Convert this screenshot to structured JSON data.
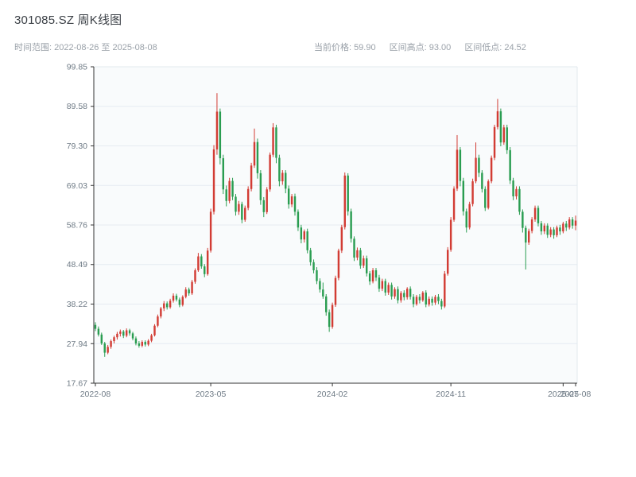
{
  "header": {
    "title": "301085.SZ 周K线图",
    "time_range": "时间范围: 2022-08-26 至 2025-08-08",
    "stats": [
      {
        "label": "当前价格:",
        "value": "59.90"
      },
      {
        "label": "区间高点:",
        "value": "93.00"
      },
      {
        "label": "区间低点:",
        "value": "24.52"
      }
    ]
  },
  "chart_data": {
    "type": "candlestick",
    "title": "301085.SZ 周K线图",
    "period": "weekly",
    "date_range": [
      "2022-08-26",
      "2025-08-08"
    ],
    "current_price": 59.9,
    "range_high": 93.0,
    "range_low": 24.52,
    "ylim": [
      17.67,
      99.85
    ],
    "y_ticks": [
      "17.67",
      "27.94",
      "38.22",
      "48.49",
      "58.76",
      "69.03",
      "79.30",
      "89.58",
      "99.85"
    ],
    "x_ticks": [
      {
        "label": "2022-08",
        "index": 0
      },
      {
        "label": "2023-05",
        "index": 37
      },
      {
        "label": "2024-02",
        "index": 76
      },
      {
        "label": "2024-11",
        "index": 114
      },
      {
        "label": "2025-07",
        "index": 150
      },
      {
        "label": "2025-08",
        "index": 154
      }
    ],
    "candle_format": [
      "open",
      "high",
      "low",
      "close"
    ],
    "colors": {
      "up": "#d23c34",
      "down": "#2a9d51",
      "grid": "#e6ebf1",
      "plot_bg": "#f9fbfc",
      "axis": "#333333",
      "frame": "#e2e8ee",
      "tick_label": "#6f7b86"
    },
    "candles": [
      [
        32.8,
        33.5,
        31.2,
        31.8
      ],
      [
        31.8,
        32.4,
        29.8,
        30.3
      ],
      [
        30.3,
        30.8,
        27.6,
        28.0
      ],
      [
        28.0,
        28.4,
        24.52,
        25.6
      ],
      [
        25.6,
        27.6,
        25.2,
        27.1
      ],
      [
        27.1,
        29.0,
        26.6,
        28.6
      ],
      [
        28.6,
        30.0,
        28.0,
        29.6
      ],
      [
        29.6,
        31.0,
        29.0,
        30.5
      ],
      [
        30.5,
        31.6,
        29.8,
        31.1
      ],
      [
        31.1,
        31.5,
        29.4,
        30.0
      ],
      [
        30.0,
        31.9,
        29.6,
        31.4
      ],
      [
        31.4,
        31.8,
        30.0,
        30.6
      ],
      [
        30.6,
        31.0,
        28.8,
        29.3
      ],
      [
        29.3,
        29.8,
        27.5,
        28.0
      ],
      [
        28.0,
        28.6,
        26.9,
        27.4
      ],
      [
        27.4,
        28.8,
        27.0,
        28.4
      ],
      [
        28.4,
        28.8,
        27.2,
        27.7
      ],
      [
        27.7,
        29.1,
        27.3,
        28.7
      ],
      [
        28.7,
        30.5,
        28.3,
        30.1
      ],
      [
        30.1,
        33.0,
        29.8,
        32.6
      ],
      [
        32.6,
        35.5,
        32.2,
        35.0
      ],
      [
        35.0,
        37.5,
        34.5,
        37.1
      ],
      [
        37.1,
        39.0,
        36.4,
        38.4
      ],
      [
        38.4,
        38.9,
        36.8,
        37.4
      ],
      [
        37.4,
        39.6,
        37.0,
        39.1
      ],
      [
        39.1,
        41.0,
        38.6,
        40.4
      ],
      [
        40.4,
        40.9,
        38.9,
        39.4
      ],
      [
        39.4,
        39.9,
        37.4,
        38.0
      ],
      [
        38.0,
        40.5,
        37.6,
        40.1
      ],
      [
        40.1,
        42.6,
        39.7,
        42.0
      ],
      [
        42.0,
        42.5,
        40.4,
        41.0
      ],
      [
        41.0,
        44.5,
        40.6,
        44.0
      ],
      [
        44.0,
        47.5,
        43.5,
        47.0
      ],
      [
        47.0,
        51.5,
        46.6,
        50.6
      ],
      [
        50.6,
        51.2,
        47.4,
        48.0
      ],
      [
        48.0,
        48.6,
        45.2,
        46.0
      ],
      [
        46.0,
        52.8,
        45.6,
        52.1
      ],
      [
        52.1,
        63.0,
        51.6,
        62.2
      ],
      [
        62.2,
        79.5,
        61.5,
        78.4
      ],
      [
        78.4,
        93.0,
        77.0,
        88.2
      ],
      [
        88.2,
        89.0,
        74.5,
        76.1
      ],
      [
        76.1,
        77.0,
        66.8,
        68.0
      ],
      [
        68.0,
        69.0,
        63.6,
        65.0
      ],
      [
        65.0,
        71.0,
        64.4,
        70.2
      ],
      [
        70.2,
        71.0,
        65.2,
        66.1
      ],
      [
        66.1,
        66.8,
        61.2,
        62.2
      ],
      [
        62.2,
        65.0,
        61.4,
        64.2
      ],
      [
        64.2,
        64.8,
        59.2,
        60.1
      ],
      [
        60.1,
        63.8,
        59.6,
        63.2
      ],
      [
        63.2,
        68.8,
        62.6,
        68.1
      ],
      [
        68.1,
        74.9,
        67.5,
        74.2
      ],
      [
        74.2,
        83.8,
        73.6,
        80.3
      ],
      [
        80.3,
        81.2,
        70.8,
        72.2
      ],
      [
        72.2,
        73.0,
        64.0,
        65.2
      ],
      [
        65.2,
        66.0,
        60.8,
        62.1
      ],
      [
        62.1,
        68.6,
        61.6,
        68.0
      ],
      [
        68.0,
        77.6,
        67.4,
        77.0
      ],
      [
        77.0,
        85.2,
        76.4,
        84.1
      ],
      [
        84.1,
        84.8,
        74.8,
        76.2
      ],
      [
        76.2,
        77.0,
        68.8,
        70.1
      ],
      [
        70.1,
        73.0,
        69.2,
        72.3
      ],
      [
        72.3,
        73.0,
        67.0,
        68.2
      ],
      [
        68.2,
        69.0,
        63.0,
        64.1
      ],
      [
        64.1,
        66.8,
        63.4,
        66.2
      ],
      [
        66.2,
        66.9,
        61.2,
        62.2
      ],
      [
        62.2,
        62.8,
        57.2,
        58.1
      ],
      [
        58.1,
        58.8,
        54.0,
        55.0
      ],
      [
        55.0,
        57.6,
        54.2,
        57.1
      ],
      [
        57.1,
        57.8,
        51.4,
        52.2
      ],
      [
        52.2,
        52.8,
        48.2,
        49.1
      ],
      [
        49.1,
        49.8,
        46.2,
        47.0
      ],
      [
        47.0,
        47.8,
        43.4,
        44.2
      ],
      [
        44.2,
        44.9,
        41.2,
        42.0
      ],
      [
        42.0,
        43.8,
        39.6,
        40.2
      ],
      [
        40.2,
        40.8,
        35.2,
        36.1
      ],
      [
        36.1,
        36.8,
        31.0,
        32.3
      ],
      [
        32.3,
        38.6,
        31.8,
        38.0
      ],
      [
        38.0,
        45.6,
        37.5,
        45.0
      ],
      [
        45.0,
        52.6,
        44.4,
        52.1
      ],
      [
        52.1,
        58.8,
        51.5,
        58.2
      ],
      [
        58.2,
        72.4,
        57.6,
        71.6
      ],
      [
        71.6,
        72.2,
        61.2,
        62.3
      ],
      [
        62.3,
        63.0,
        54.2,
        55.2
      ],
      [
        55.2,
        55.8,
        49.4,
        50.3
      ],
      [
        50.3,
        52.9,
        49.6,
        52.2
      ],
      [
        52.2,
        52.8,
        47.4,
        48.2
      ],
      [
        48.2,
        50.8,
        47.6,
        50.1
      ],
      [
        50.1,
        50.8,
        45.4,
        46.2
      ],
      [
        46.2,
        46.8,
        43.2,
        44.1
      ],
      [
        44.1,
        47.6,
        43.6,
        47.0
      ],
      [
        47.0,
        47.6,
        44.2,
        45.1
      ],
      [
        45.1,
        45.8,
        41.4,
        42.2
      ],
      [
        42.2,
        44.8,
        41.6,
        44.2
      ],
      [
        44.2,
        44.8,
        40.4,
        41.2
      ],
      [
        41.2,
        43.8,
        40.6,
        43.2
      ],
      [
        43.2,
        43.8,
        39.4,
        40.2
      ],
      [
        40.2,
        42.6,
        39.6,
        42.1
      ],
      [
        42.1,
        42.8,
        38.4,
        39.2
      ],
      [
        39.2,
        41.6,
        38.6,
        41.1
      ],
      [
        41.1,
        41.8,
        39.2,
        40.0
      ],
      [
        40.0,
        42.6,
        39.4,
        42.2
      ],
      [
        42.2,
        42.8,
        39.4,
        40.1
      ],
      [
        40.1,
        40.8,
        37.4,
        38.2
      ],
      [
        38.2,
        40.6,
        37.8,
        40.1
      ],
      [
        40.1,
        40.8,
        38.4,
        39.2
      ],
      [
        39.2,
        41.6,
        38.8,
        41.2
      ],
      [
        41.2,
        41.8,
        37.4,
        38.1
      ],
      [
        38.1,
        40.2,
        37.6,
        39.6
      ],
      [
        39.6,
        40.2,
        37.8,
        38.6
      ],
      [
        38.6,
        40.6,
        38.0,
        40.1
      ],
      [
        40.1,
        40.8,
        38.2,
        39.0
      ],
      [
        39.0,
        39.6,
        36.8,
        37.6
      ],
      [
        37.6,
        46.8,
        37.2,
        46.1
      ],
      [
        46.1,
        53.0,
        45.6,
        52.3
      ],
      [
        52.3,
        60.8,
        51.8,
        60.1
      ],
      [
        60.1,
        68.8,
        59.6,
        68.2
      ],
      [
        68.2,
        82.1,
        67.6,
        78.3
      ],
      [
        78.3,
        79.0,
        68.8,
        70.2
      ],
      [
        70.2,
        71.0,
        61.2,
        62.3
      ],
      [
        62.3,
        63.0,
        56.8,
        58.1
      ],
      [
        58.1,
        64.8,
        57.6,
        64.2
      ],
      [
        64.2,
        70.8,
        63.6,
        70.1
      ],
      [
        70.1,
        80.2,
        69.6,
        76.2
      ],
      [
        76.2,
        77.0,
        71.2,
        72.3
      ],
      [
        72.3,
        73.0,
        67.2,
        68.1
      ],
      [
        68.1,
        68.8,
        62.4,
        63.2
      ],
      [
        63.2,
        70.6,
        62.8,
        70.1
      ],
      [
        70.1,
        76.8,
        69.6,
        76.2
      ],
      [
        76.2,
        84.8,
        75.6,
        84.2
      ],
      [
        84.2,
        91.5,
        83.6,
        88.3
      ],
      [
        88.3,
        89.0,
        79.2,
        80.2
      ],
      [
        80.2,
        84.8,
        79.6,
        84.1
      ],
      [
        84.1,
        84.8,
        77.2,
        78.2
      ],
      [
        78.2,
        79.0,
        69.4,
        70.3
      ],
      [
        70.3,
        71.0,
        65.2,
        66.2
      ],
      [
        66.2,
        68.8,
        65.4,
        68.1
      ],
      [
        68.1,
        68.8,
        61.4,
        62.2
      ],
      [
        62.2,
        62.8,
        56.8,
        58.0
      ],
      [
        58.0,
        58.6,
        47.2,
        54.2
      ],
      [
        54.2,
        57.8,
        53.6,
        57.2
      ],
      [
        57.2,
        60.8,
        56.6,
        60.2
      ],
      [
        60.2,
        63.8,
        59.6,
        63.2
      ],
      [
        63.2,
        63.8,
        58.4,
        59.2
      ],
      [
        59.2,
        59.8,
        56.2,
        57.1
      ],
      [
        57.1,
        59.2,
        56.4,
        58.6
      ],
      [
        58.6,
        59.2,
        55.4,
        56.2
      ],
      [
        56.2,
        58.2,
        55.6,
        57.6
      ],
      [
        57.6,
        58.2,
        55.2,
        56.1
      ],
      [
        56.1,
        58.6,
        55.6,
        58.1
      ],
      [
        58.1,
        58.8,
        56.2,
        57.1
      ],
      [
        57.1,
        59.6,
        56.6,
        59.1
      ],
      [
        59.1,
        59.8,
        57.2,
        58.1
      ],
      [
        58.1,
        60.8,
        57.6,
        60.2
      ],
      [
        60.2,
        60.8,
        57.8,
        58.6
      ],
      [
        58.6,
        61.2,
        57.4,
        59.9
      ]
    ]
  }
}
